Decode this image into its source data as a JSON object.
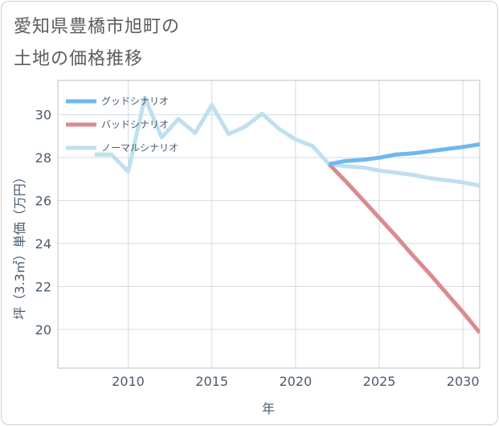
{
  "title_line1": "愛知県豊橋市旭町の",
  "title_line2": "土地の価格推移",
  "chart_data": {
    "type": "line",
    "xlabel": "年",
    "ylabel": "坪（3.3㎡）単価（万円）",
    "xlim": [
      2005.8,
      2031.0
    ],
    "ylim": [
      18.2,
      31.6
    ],
    "xticks": [
      2010,
      2015,
      2020,
      2025,
      2030
    ],
    "yticks": [
      20,
      22,
      24,
      26,
      28,
      30
    ],
    "legend_position": "top-left",
    "series": [
      {
        "name": "グッドシナリオ",
        "color": "#6fb8ee",
        "x": [
          2022,
          2023,
          2024,
          2025,
          2026,
          2027,
          2028,
          2029,
          2030,
          2031
        ],
        "y": [
          27.7,
          27.85,
          27.9,
          28.0,
          28.15,
          28.2,
          28.3,
          28.4,
          28.5,
          28.62
        ]
      },
      {
        "name": "バッドシナリオ",
        "color": "#db8a91",
        "x": [
          2022,
          2023,
          2024,
          2025,
          2026,
          2027,
          2028,
          2029,
          2030,
          2031
        ],
        "y": [
          27.7,
          26.9,
          26.05,
          25.2,
          24.35,
          23.45,
          22.6,
          21.7,
          20.8,
          19.85
        ]
      },
      {
        "name": "ノーマルシナリオ",
        "color": "#bfe0ee",
        "x": [
          2008,
          2009,
          2010,
          2011,
          2012,
          2013,
          2014,
          2015,
          2016,
          2017,
          2018,
          2019,
          2020,
          2021,
          2022,
          2023,
          2024,
          2025,
          2026,
          2027,
          2028,
          2029,
          2030,
          2031
        ],
        "y": [
          28.15,
          28.15,
          27.35,
          30.8,
          28.95,
          29.8,
          29.15,
          30.45,
          29.1,
          29.45,
          30.05,
          29.35,
          28.85,
          28.55,
          27.7,
          27.6,
          27.55,
          27.4,
          27.3,
          27.2,
          27.05,
          26.95,
          26.85,
          26.7
        ]
      }
    ]
  }
}
